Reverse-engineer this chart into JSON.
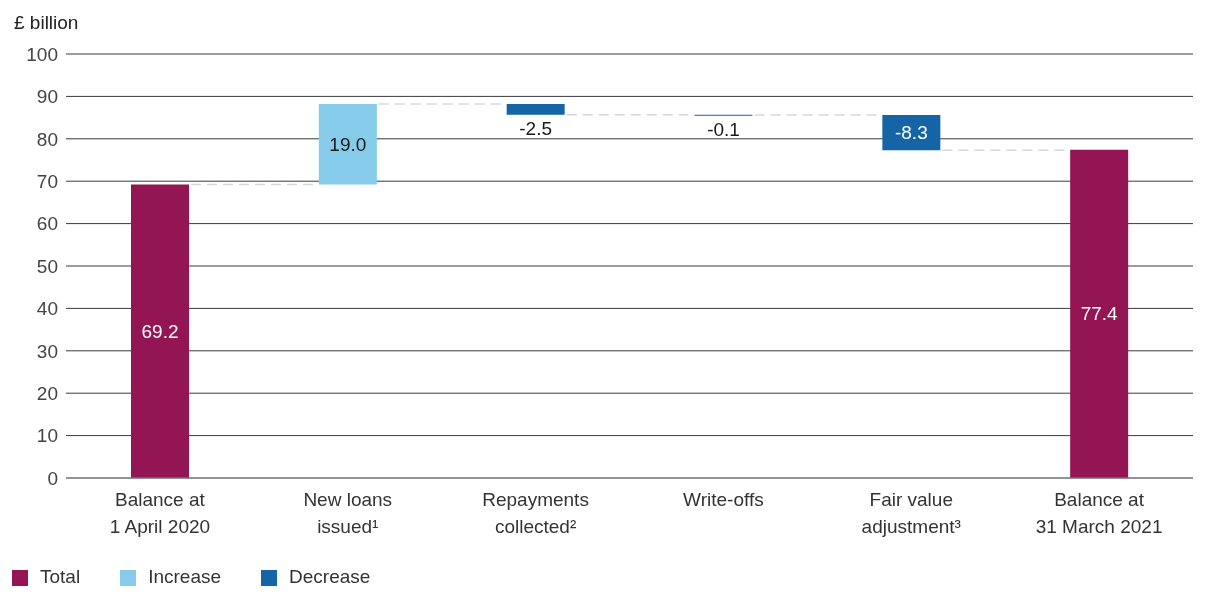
{
  "chart_data": {
    "type": "bar",
    "ylabel": "£ billion",
    "categories": [
      "Balance at\n1 April 2020",
      "New loans\nissued¹",
      "Repayments\ncollected²",
      "Write-offs",
      "Fair value\nadjustment³",
      "Balance at\n31 March 2021"
    ],
    "series": [
      {
        "name": "Total",
        "color": "#931554",
        "values": [
          69.2,
          null,
          null,
          null,
          null,
          77.4
        ],
        "base": [
          0,
          null,
          null,
          null,
          null,
          0
        ],
        "value_labels": [
          "69.2",
          null,
          null,
          null,
          null,
          "77.4"
        ]
      },
      {
        "name": "Increase",
        "color": "#86cbea",
        "values": [
          null,
          19.0,
          null,
          null,
          null,
          null
        ],
        "base": [
          null,
          69.2,
          null,
          null,
          null,
          null
        ],
        "value_labels": [
          null,
          "19.0",
          null,
          null,
          null,
          null
        ]
      },
      {
        "name": "Decrease",
        "color": "#1565a6",
        "values": [
          null,
          null,
          -2.5,
          -0.1,
          -8.3,
          null
        ],
        "base": [
          null,
          null,
          88.2,
          85.7,
          85.6,
          null
        ],
        "value_labels": [
          null,
          null,
          "-2.5",
          "-0.1",
          "-8.3",
          null
        ]
      }
    ],
    "ylim": [
      0,
      100
    ],
    "yticks": [
      0,
      10,
      20,
      30,
      40,
      50,
      60,
      70,
      80,
      90,
      100
    ],
    "grid": "y",
    "legend": "bottom left"
  }
}
